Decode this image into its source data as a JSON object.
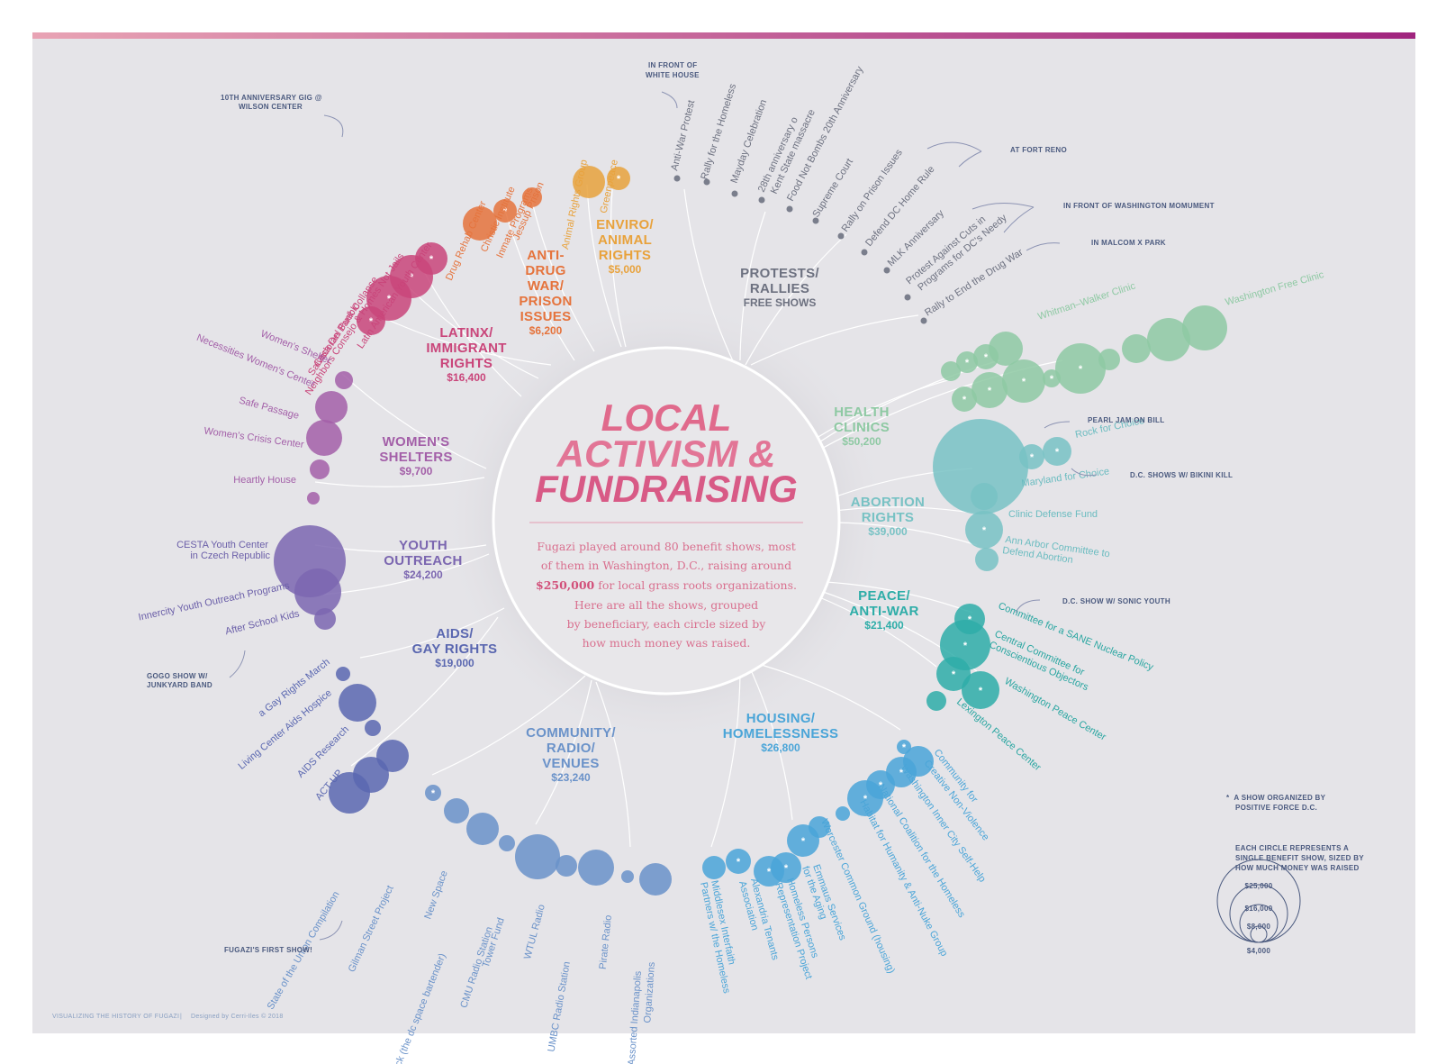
{
  "title_lines": [
    "LOCAL",
    "ACTIVISM &",
    "FUNDRAISING"
  ],
  "blurb": {
    "line1": "Fugazi played around 80 benefit shows, most",
    "line2": "of them in Washington, D.C., raising around",
    "line3_bold": "$250,000",
    "line3_rest": " for local grass roots organizations.",
    "line4": "Here are all the shows, grouped",
    "line5": "by beneficiary, each circle sized by",
    "line6": "how much money was raised."
  },
  "colors": {
    "bg": "#e5e4e8",
    "gradient_start": "#e8a3b4",
    "gradient_end": "#a0247e",
    "latinx": "#c9457a",
    "antidrug": "#e5733c",
    "enviro": "#e8a23c",
    "protests": "#6d7180",
    "health": "#8ec9a3",
    "abortion": "#78c2c4",
    "peace": "#2eada8",
    "housing": "#4aa5d8",
    "community": "#6a92c9",
    "aids": "#5a67b0",
    "youth": "#7b66b0",
    "womens": "#a35fa8",
    "note": "#4b5a7f"
  },
  "categories": [
    {
      "id": "latinx",
      "title": [
        "LATINX/",
        "IMMIGRANT",
        "RIGHTS"
      ],
      "amount": "$16,400"
    },
    {
      "id": "antidrug",
      "title": [
        "ANTI-",
        "DRUG",
        "WAR/",
        "PRISON",
        "ISSUES"
      ],
      "amount": "$6,200"
    },
    {
      "id": "enviro",
      "title": [
        "ENVIRO/",
        "ANIMAL",
        "RIGHTS"
      ],
      "amount": "$5,000"
    },
    {
      "id": "protests",
      "title": [
        "PROTESTS/",
        "RALLIES"
      ],
      "amount": "FREE SHOWS"
    },
    {
      "id": "health",
      "title": [
        "HEALTH",
        "CLINICS"
      ],
      "amount": "$50,200"
    },
    {
      "id": "abortion",
      "title": [
        "ABORTION",
        "RIGHTS"
      ],
      "amount": "$39,000"
    },
    {
      "id": "peace",
      "title": [
        "PEACE/",
        "ANTI-WAR"
      ],
      "amount": "$21,400"
    },
    {
      "id": "housing",
      "title": [
        "HOUSING/",
        "HOMELESSNESS"
      ],
      "amount": "$26,800"
    },
    {
      "id": "community",
      "title": [
        "COMMUNITY/",
        "RADIO/",
        "VENUES"
      ],
      "amount": "$23,240"
    },
    {
      "id": "aids",
      "title": [
        "AIDS/",
        "GAY RIGHTS"
      ],
      "amount": "$19,000"
    },
    {
      "id": "youth",
      "title": [
        "YOUTH",
        "OUTREACH"
      ],
      "amount": "$24,200"
    },
    {
      "id": "womens",
      "title": [
        "WOMEN'S",
        "SHELTERS"
      ],
      "amount": "$9,700"
    }
  ],
  "beneficiaries": {
    "latinx": [
      "Latin American Youth Center",
      "Neighbors Consejo & Homes Not Jails",
      "Salvadoran Bank Collapse",
      "Casa Del Pueblo"
    ],
    "antidrug": [
      "Drug Rehab Center",
      "Christic Institute",
      "Inmate Programs",
      "Jessup Prison"
    ],
    "enviro": [
      "Animal Rights Group",
      "Greenpeace"
    ],
    "protests": [
      "Anti-War Protest",
      "Rally for the Homeless",
      "Mayday Celebration",
      "28th anniversary o",
      "Kent State massacre",
      "Food Not Bombs 20th Anniversary",
      "Supreme Court",
      "Rally on Prison Issues",
      "Defend DC Home Rule",
      "MLK Anniversary",
      "Protest Against Cuts in",
      "Programs for DC's Needy",
      "Rally to End the Drug War"
    ],
    "health": [
      "Whitman–Walker Clinic",
      "Washington Free Clinic"
    ],
    "abortion": [
      "Rock for Choice",
      "Maryland for Choice",
      "Clinic Defense Fund",
      "Ann Arbor Committee to",
      "Defend Abortion"
    ],
    "peace": [
      "Committee for a SANE Nuclear Policy",
      "Central Committee for",
      "Conscientious Objectors",
      "Washington Peace Center",
      "Lexington Peace Center"
    ],
    "housing": [
      "Community for",
      "Creative Non-Violence",
      "Washington Inner City Self-Help",
      "National Coalition for the Homeless",
      "Habitat for Humanity & Anti-Nuke Group",
      "Worcester Common Ground (housing)",
      "Emmaus Services",
      "for the Aging",
      "Homeless Persons",
      "Representation Project",
      "Alexandria Tenants",
      "Association",
      "Middlesex Interfaith",
      "Partners w/ the Homeless"
    ],
    "community": [
      "State of the Union Compilation",
      "Gilman Street Project",
      "New Space",
      "Buck (the dc space bartender)",
      "CMU Radio Station",
      "Tower Fund",
      "WTUL Radio",
      "UMBC Radio Station",
      "Pirate Radio",
      "Assorted Indianapolis",
      "Organizations"
    ],
    "aids": [
      "a Gay Rights March",
      "Living Center Aids Hospice",
      "AIDS Research",
      "ACT-UP"
    ],
    "youth": [
      "CESTA Youth Center",
      "in Czech Republic",
      "Innercity Youth Outreach Programs",
      "After School Kids"
    ],
    "womens": [
      "Women's Shelter",
      "Necessities Women's Center",
      "Safe Passage",
      "Women's Crisis Center",
      "Heartly House"
    ]
  },
  "notes": {
    "wilson_1": "10TH ANNIVERSARY GIG @",
    "wilson_2": "WILSON CENTER",
    "white_house_1": "IN FRONT OF",
    "white_house_2": "WHITE HOUSE",
    "fort_reno": "AT FORT RENO",
    "wash_monument": "IN FRONT OF WASHINGTON MOMUMENT",
    "malcolm_x": "IN MALCOM X PARK",
    "pearl_jam": "PEARL JAM ON BILL",
    "bikini_kill": "D.C. SHOWS W/ BIKINI KILL",
    "sonic_youth": "D.C. SHOW W/ SONIC YOUTH",
    "gogo_1": "GOGO SHOW W/",
    "gogo_2": "JUNKYARD BAND",
    "first_show": "FUGAZI'S FIRST SHOW!"
  },
  "legend": {
    "star_line1": "A SHOW ORGANIZED BY",
    "star_line2": "POSITIVE FORCE D.C.",
    "size_line1": "EACH CIRCLE REPRESENTS A",
    "size_line2": "SINGLE BENEFIT SHOW, SIZED BY",
    "size_line3": "HOW MUCH MONEY WAS RAISED",
    "sizes": [
      "$25,000",
      "$16,000",
      "$8,000",
      "$4,000"
    ],
    "star_symbol": "*"
  },
  "footer": {
    "left": "VISUALIZING THE HISTORY OF FUGAZI",
    "sep": "|",
    "right": "Designed by Cerri-Iles © 2018"
  }
}
